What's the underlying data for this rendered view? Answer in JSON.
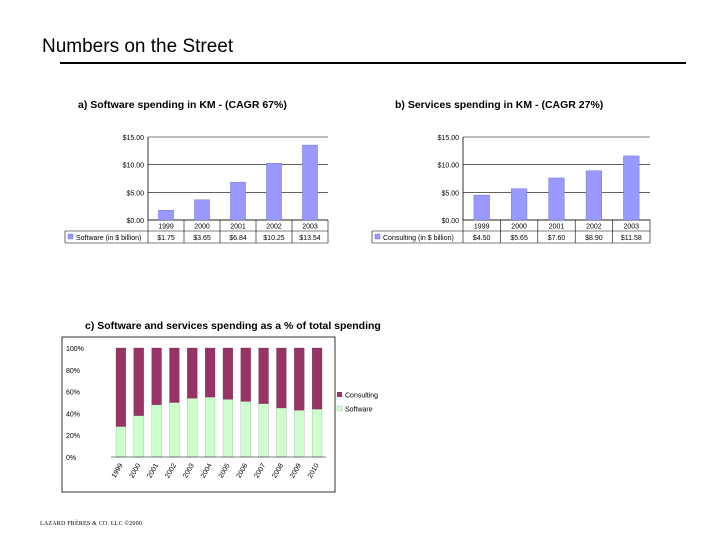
{
  "slide": {
    "title": "Numbers on the Street",
    "footer": "LAZARD FRÈRES & CO. LLC ©2000"
  },
  "colors": {
    "bar_fill": "#9999ff",
    "consulting": "#993366",
    "software": "#ccffcc",
    "axis": "#000000",
    "grid": "#000000"
  },
  "chart_data": [
    {
      "type": "bar",
      "title": "a) Software spending in KM - (CAGR 67%)",
      "categories": [
        "1999",
        "2000",
        "2001",
        "2002",
        "2003"
      ],
      "y_tick_labels": [
        "$0.00",
        "$5.00",
        "$10.00",
        "$15.00"
      ],
      "ylim": [
        0,
        15
      ],
      "grid": true,
      "series": [
        {
          "name": "Software (in $ billion)",
          "values": [
            1.75,
            3.65,
            6.84,
            10.25,
            13.54
          ],
          "value_labels": [
            "$1.75",
            "$3.65",
            "$6.84",
            "$10.25",
            "$13.54"
          ]
        }
      ],
      "legend_placement": "data-table-below"
    },
    {
      "type": "bar",
      "title": "b) Services spending in KM - (CAGR 27%)",
      "categories": [
        "1999",
        "2000",
        "2001",
        "2002",
        "2003"
      ],
      "y_tick_labels": [
        "$0.00",
        "$5.00",
        "$10.00",
        "$15.00"
      ],
      "ylim": [
        0,
        15
      ],
      "grid": true,
      "series": [
        {
          "name": "Consulting (in $ billion)",
          "values": [
            4.5,
            5.65,
            7.6,
            8.9,
            11.58
          ],
          "value_labels": [
            "$4.50",
            "$5.65",
            "$7.60",
            "$8.90",
            "$11.58"
          ]
        }
      ],
      "legend_placement": "data-table-below"
    },
    {
      "type": "bar",
      "stacked": true,
      "title": "c) Software and services spending as a % of total spending",
      "categories": [
        "1999",
        "2000",
        "2001",
        "2002",
        "2003",
        "2004",
        "2005",
        "2006",
        "2007",
        "2008",
        "2009",
        "2010"
      ],
      "y_tick_labels": [
        "0%",
        "20%",
        "40%",
        "60%",
        "80%",
        "100%"
      ],
      "ylim": [
        0,
        100
      ],
      "grid": false,
      "series": [
        {
          "name": "Software",
          "values": [
            28,
            38,
            48,
            50,
            54,
            55,
            53,
            51,
            49,
            45,
            43,
            44
          ]
        },
        {
          "name": "Consulting",
          "values": [
            72,
            62,
            52,
            50,
            46,
            45,
            47,
            49,
            51,
            55,
            57,
            56
          ]
        }
      ],
      "legend_placement": "right"
    }
  ]
}
